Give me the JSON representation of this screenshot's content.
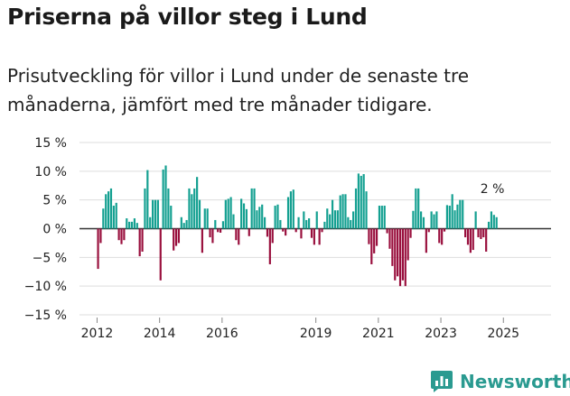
{
  "header": {
    "title": "Priserna på villor steg i Lund",
    "subtitle": "Prisutveckling för villor i Lund under de senaste tre månaderna, jämfört med tre månader tidigare."
  },
  "brand": {
    "name": "Newsworthy"
  },
  "colors": {
    "positive": "#14a091",
    "negative": "#990f3d",
    "grid": "#dddddd",
    "zero": "#333333"
  },
  "chart_data": {
    "type": "bar",
    "title": "Priserna på villor steg i Lund",
    "xlabel": "",
    "ylabel": "",
    "ylim": [
      -15,
      15
    ],
    "yticks": [
      -15,
      -10,
      -5,
      0,
      5,
      10,
      15
    ],
    "ytick_labels": [
      "−15 %",
      "−10 %",
      "−5 %",
      "0 %",
      "5 %",
      "10 %",
      "15 %"
    ],
    "xtick_labels": [
      "2012",
      "2014",
      "2016",
      "2019",
      "2021",
      "2023",
      "2025"
    ],
    "xtick_years": [
      2012,
      2014,
      2016,
      2019,
      2021,
      2023,
      2025
    ],
    "x_start_year": 2011.9,
    "x_end_year": 2026.3,
    "annotation": "2 %",
    "series": [
      {
        "name": "Prisutveckling (%)",
        "start": "2012-01",
        "frequency": "monthly",
        "values": [
          -7,
          -2.5,
          3.5,
          6,
          6.5,
          7,
          4,
          4.5,
          -2,
          -2.7,
          -2,
          1.8,
          1.2,
          1.2,
          1.8,
          1,
          -4.8,
          -4,
          7,
          10.2,
          2,
          5,
          5,
          5,
          -9,
          10.3,
          11,
          7,
          4,
          -3.8,
          -3,
          -2.5,
          2,
          1,
          1.5,
          7,
          6,
          7,
          9,
          5,
          -4.2,
          3.5,
          3.5,
          -1.5,
          -2.5,
          1.5,
          -0.6,
          -0.7,
          1.3,
          5,
          5.2,
          5.5,
          2.5,
          -2,
          -2.8,
          5.2,
          4.4,
          3.4,
          -1.3,
          7,
          7,
          3.2,
          3.8,
          4.2,
          2,
          -1.4,
          -6.2,
          -2.5,
          4,
          4.2,
          1.5,
          -0.5,
          -1.2,
          5.5,
          6.5,
          6.8,
          -0.6,
          2,
          -1.7,
          3,
          1.5,
          1.8,
          -1.6,
          -2.8,
          3,
          -2.8,
          -0.6,
          1.2,
          3.5,
          2.5,
          5,
          3.2,
          3.2,
          5.8,
          6,
          6,
          2,
          1.5,
          3,
          7,
          9.6,
          9.2,
          9.5,
          6.5,
          -2.7,
          -6.2,
          -4.3,
          -3,
          4,
          4,
          4,
          -0.8,
          -3.5,
          -6.5,
          -9,
          -8.3,
          -10,
          -9,
          -10,
          -5.5,
          -1.6,
          3.1,
          7,
          7,
          3,
          2,
          -4.2,
          -0.6,
          3,
          2.5,
          3,
          -2.5,
          -2.8,
          -0.5,
          4.1,
          4,
          6,
          3.2,
          4.2,
          5,
          5,
          -1.5,
          -2.8,
          -4.2,
          -3.7,
          3,
          -1.5,
          -1.8,
          -1.5,
          -4,
          1.2,
          3,
          2.4,
          2
        ]
      }
    ]
  }
}
